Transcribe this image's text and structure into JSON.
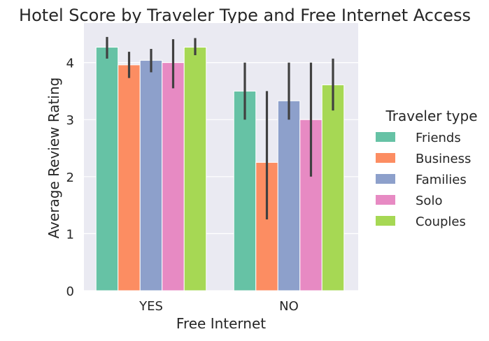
{
  "chart_data": {
    "type": "bar",
    "title": "Hotel Score by Traveler Type and Free Internet Access",
    "xlabel": "Free Internet",
    "ylabel": "Average Review Rating",
    "categories": [
      "YES",
      "NO"
    ],
    "ylim": [
      0,
      4.6
    ],
    "yticks": [
      "0",
      "1",
      "2",
      "3",
      "4"
    ],
    "grid": true,
    "legend": {
      "title": "Traveler type",
      "placement": "right"
    },
    "series": [
      {
        "name": "Friends",
        "color": "#66c2a5",
        "values": [
          4.27,
          3.5
        ],
        "ci": [
          [
            4.07,
            4.45
          ],
          [
            3.0,
            4.0
          ]
        ]
      },
      {
        "name": "Business",
        "color": "#fc8d62",
        "values": [
          3.96,
          2.25
        ],
        "ci": [
          [
            3.73,
            4.19
          ],
          [
            1.25,
            3.5
          ]
        ]
      },
      {
        "name": "Families",
        "color": "#8da0cb",
        "values": [
          4.04,
          3.33
        ],
        "ci": [
          [
            3.83,
            4.24
          ],
          [
            3.0,
            4.0
          ]
        ]
      },
      {
        "name": "Solo",
        "color": "#e78ac3",
        "values": [
          4.0,
          3.0
        ],
        "ci": [
          [
            3.55,
            4.41
          ],
          [
            2.0,
            4.0
          ]
        ]
      },
      {
        "name": "Couples",
        "color": "#a6d854",
        "values": [
          4.27,
          3.61
        ],
        "ci": [
          [
            4.13,
            4.43
          ],
          [
            3.16,
            4.07
          ]
        ]
      }
    ]
  }
}
